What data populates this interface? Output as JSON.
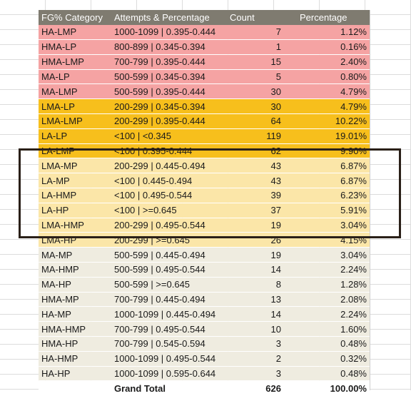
{
  "table": {
    "headers": [
      "FG% Category",
      "Attempts & Percentage",
      "Count",
      "Percentage"
    ],
    "rows": [
      {
        "category": "HA-LMP",
        "attempts": "1000-1099 | 0.395-0.444",
        "count": "7",
        "percentage": "1.12%",
        "band": "pink"
      },
      {
        "category": "HMA-LP",
        "attempts": "800-899 | 0.345-0.394",
        "count": "1",
        "percentage": "0.16%",
        "band": "pink"
      },
      {
        "category": "HMA-LMP",
        "attempts": "700-799 | 0.395-0.444",
        "count": "15",
        "percentage": "2.40%",
        "band": "pink"
      },
      {
        "category": "MA-LP",
        "attempts": "500-599 | 0.345-0.394",
        "count": "5",
        "percentage": "0.80%",
        "band": "pink"
      },
      {
        "category": "MA-LMP",
        "attempts": "500-599 | 0.395-0.444",
        "count": "30",
        "percentage": "4.79%",
        "band": "pink"
      },
      {
        "category": "LMA-LP",
        "attempts": "200-299 | 0.345-0.394",
        "count": "30",
        "percentage": "4.79%",
        "band": "orange"
      },
      {
        "category": "LMA-LMP",
        "attempts": "200-299 | 0.395-0.444",
        "count": "64",
        "percentage": "10.22%",
        "band": "orange"
      },
      {
        "category": "LA-LP",
        "attempts": "<100 | <0.345",
        "count": "119",
        "percentage": "19.01%",
        "band": "orange"
      },
      {
        "category": "LA-LMP",
        "attempts": "<100 | 0.395-0.444",
        "count": "62",
        "percentage": "9.90%",
        "band": "orange"
      },
      {
        "category": "LMA-MP",
        "attempts": "200-299 | 0.445-0.494",
        "count": "43",
        "percentage": "6.87%",
        "band": "yellow"
      },
      {
        "category": "LA-MP",
        "attempts": "<100 | 0.445-0.494",
        "count": "43",
        "percentage": "6.87%",
        "band": "yellow"
      },
      {
        "category": "LA-HMP",
        "attempts": "<100 | 0.495-0.544",
        "count": "39",
        "percentage": "6.23%",
        "band": "yellow"
      },
      {
        "category": "LA-HP",
        "attempts": "<100 | >=0.645",
        "count": "37",
        "percentage": "5.91%",
        "band": "yellow"
      },
      {
        "category": "LMA-HMP",
        "attempts": "200-299 | 0.495-0.544",
        "count": "19",
        "percentage": "3.04%",
        "band": "yellow"
      },
      {
        "category": "LMA-HP",
        "attempts": "200-299 | >=0.645",
        "count": "26",
        "percentage": "4.15%",
        "band": "yellow"
      },
      {
        "category": "MA-MP",
        "attempts": "500-599 | 0.445-0.494",
        "count": "19",
        "percentage": "3.04%",
        "band": "beige"
      },
      {
        "category": "MA-HMP",
        "attempts": "500-599 | 0.495-0.544",
        "count": "14",
        "percentage": "2.24%",
        "band": "beige"
      },
      {
        "category": "MA-HP",
        "attempts": "500-599 | >=0.645",
        "count": "8",
        "percentage": "1.28%",
        "band": "beige"
      },
      {
        "category": "HMA-MP",
        "attempts": "700-799 | 0.445-0.494",
        "count": "13",
        "percentage": "2.08%",
        "band": "beige"
      },
      {
        "category": "HA-MP",
        "attempts": "1000-1099 | 0.445-0.494",
        "count": "14",
        "percentage": "2.24%",
        "band": "beige"
      },
      {
        "category": "HMA-HMP",
        "attempts": "700-799 | 0.495-0.544",
        "count": "10",
        "percentage": "1.60%",
        "band": "beige"
      },
      {
        "category": "HMA-HP",
        "attempts": "700-799 | 0.545-0.594",
        "count": "3",
        "percentage": "0.48%",
        "band": "beige"
      },
      {
        "category": "HA-HMP",
        "attempts": "1000-1099 | 0.495-0.544",
        "count": "2",
        "percentage": "0.32%",
        "band": "beige"
      },
      {
        "category": "HA-HP",
        "attempts": "1000-1099 | 0.595-0.644",
        "count": "3",
        "percentage": "0.48%",
        "band": "beige"
      }
    ],
    "total": {
      "label": "Grand Total",
      "count": "626",
      "percentage": "100.00%"
    }
  },
  "colors": {
    "header": "#7f7b70",
    "pink": "#f5a3a3",
    "orange": "#f7bf1c",
    "yellow": "#fbe6a8",
    "beige": "#efece0",
    "highlight_border": "#2a2018"
  }
}
